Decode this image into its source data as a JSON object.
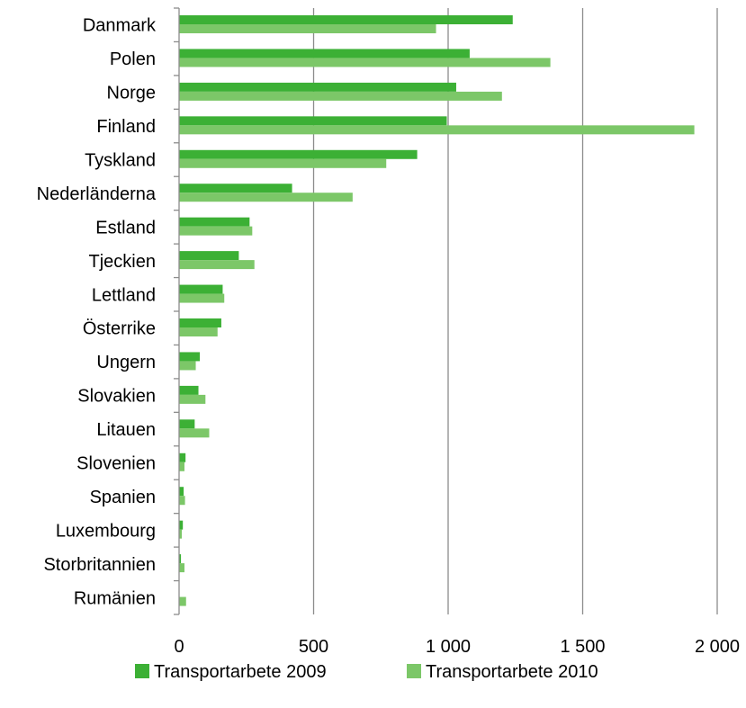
{
  "chart_data": {
    "type": "bar",
    "orientation": "horizontal",
    "categories": [
      "Danmark",
      "Polen",
      "Norge",
      "Finland",
      "Tyskland",
      "Nederländerna",
      "Estland",
      "Tjeckien",
      "Lettland",
      "Österrike",
      "Ungern",
      "Slovakien",
      "Litauen",
      "Slovenien",
      "Spanien",
      "Luxembourg",
      "Storbritannien",
      "Rumänien"
    ],
    "series": [
      {
        "name": "Transportarbete 2009",
        "color": "#3cb035",
        "values": [
          1240,
          1080,
          1030,
          995,
          885,
          420,
          262,
          222,
          162,
          157,
          77,
          72,
          58,
          24,
          17,
          14,
          7,
          0
        ]
      },
      {
        "name": "Transportarbete 2010",
        "color": "#7cc768",
        "values": [
          955,
          1380,
          1200,
          1915,
          770,
          645,
          272,
          280,
          168,
          143,
          62,
          98,
          112,
          20,
          22,
          10,
          20,
          26
        ]
      }
    ],
    "xlim": [
      0,
      2000
    ],
    "xticks": [
      0,
      500,
      1000,
      1500,
      2000
    ],
    "xtick_labels": [
      "0",
      "500",
      "1 000",
      "1 500",
      "2 000"
    ],
    "grid": "vertical",
    "legend_position": "bottom"
  }
}
